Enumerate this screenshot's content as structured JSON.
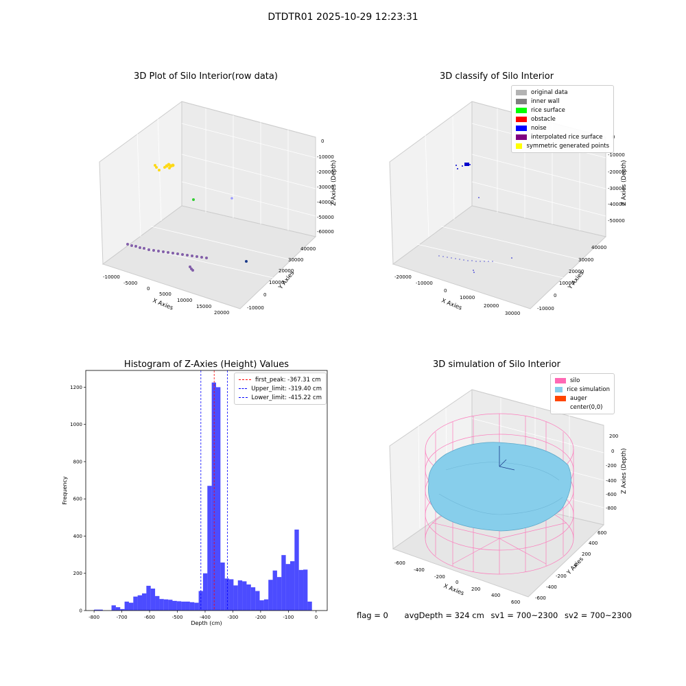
{
  "suptitle": "DTDTR01 2025-10-29 12:23:31",
  "panels": {
    "raw": {
      "title": "3D Plot of Silo Interior(row data)",
      "xlabel": "X Axies",
      "ylabel": "Y Axies",
      "zlabel": "Z Axies (Depth)",
      "xticks": [
        "-10000",
        "-5000",
        "0",
        "5000",
        "10000",
        "15000",
        "20000"
      ],
      "yticks": [
        "-10000",
        "0",
        "10000",
        "20000",
        "30000",
        "40000"
      ],
      "zticks": [
        "0",
        "-10000",
        "-20000",
        "-30000",
        "-40000",
        "-50000",
        "-60000"
      ]
    },
    "classify": {
      "title": "3D classify of Silo Interior",
      "xlabel": "X Axies",
      "ylabel": "Y Axies",
      "zlabel": "Z Axies (Depth)",
      "xticks": [
        "-20000",
        "-10000",
        "0",
        "10000",
        "20000",
        "30000"
      ],
      "yticks": [
        "-10000",
        "0",
        "10000",
        "20000",
        "30000",
        "40000"
      ],
      "zticks": [
        "0",
        "-10000",
        "-20000",
        "-30000",
        "-40000",
        "-50000"
      ],
      "legend": [
        {
          "label": "original data",
          "color": "#b3b3b3"
        },
        {
          "label": "inner wall",
          "color": "#808080"
        },
        {
          "label": "rice surface",
          "color": "#00ff00"
        },
        {
          "label": "obstacle",
          "color": "#ff0000"
        },
        {
          "label": "noise",
          "color": "#0000ff"
        },
        {
          "label": "interpolated rice surface",
          "color": "#800080"
        },
        {
          "label": "symmetric generated points",
          "color": "#ffff00"
        }
      ]
    },
    "simulation": {
      "title": "3D simulation of Silo Interior",
      "xlabel": "X Axies",
      "ylabel": "Y Axies",
      "zlabel": "Z Axies (Depth)",
      "xticks": [
        "-600",
        "-400",
        "-200",
        "0",
        "200",
        "400",
        "600"
      ],
      "yticks": [
        "-600",
        "-400",
        "-200",
        "0",
        "200",
        "400",
        "600"
      ],
      "zticks": [
        "200",
        "0",
        "-200",
        "-400",
        "-600",
        "-800"
      ],
      "legend": [
        {
          "label": "silo",
          "color": "#ff69b4"
        },
        {
          "label": "rice simulation",
          "color": "#87ceeb"
        },
        {
          "label": "auger",
          "color": "#ff4500"
        },
        {
          "label": "center(0,0)",
          "color": "#ffffff"
        }
      ]
    }
  },
  "chart_data": {
    "type": "bar",
    "title": "Histogram of Z-Axies (Height) Values",
    "xlabel": "Depth (cm)",
    "ylabel": "Frequency",
    "xlim": [
      -830,
      40
    ],
    "ylim": [
      0,
      1290
    ],
    "xticks": [
      -800,
      -700,
      -600,
      -500,
      -400,
      -300,
      -200,
      -100,
      0
    ],
    "yticks": [
      0,
      200,
      400,
      600,
      800,
      1000,
      1200
    ],
    "bar_color": "#0000ff",
    "bar_alpha": 0.7,
    "bin_width": 15.7,
    "bins_start": [
      -800,
      -784.3,
      -768.6,
      -752.9,
      -737.2,
      -721.5,
      -705.8,
      -690.1,
      -674.4,
      -658.7,
      -643,
      -627.3,
      -611.6,
      -595.9,
      -580.2,
      -564.5,
      -548.8,
      -533.1,
      -517.4,
      -501.7,
      -486,
      -470.3,
      -454.6,
      -438.9,
      -423.2,
      -407.5,
      -391.8,
      -376.1,
      -360.4,
      -344.7,
      -329,
      -313.3,
      -297.6,
      -281.9,
      -266.2,
      -250.5,
      -234.8,
      -219.1,
      -203.4,
      -187.7,
      -172,
      -156.3,
      -140.6,
      -124.9,
      -109.2,
      -93.5,
      -77.8,
      -62.1,
      -46.4,
      -30.7,
      -15
    ],
    "values": [
      5,
      5,
      0,
      0,
      28,
      18,
      8,
      48,
      42,
      75,
      82,
      92,
      133,
      118,
      78,
      62,
      60,
      58,
      52,
      50,
      48,
      48,
      45,
      42,
      105,
      200,
      670,
      1225,
      1200,
      258,
      172,
      168,
      135,
      162,
      157,
      140,
      125,
      105,
      55,
      60,
      165,
      215,
      180,
      298,
      250,
      265,
      435,
      218,
      220,
      48
    ],
    "annotations": [
      {
        "label": "first_peak: -367.31 cm",
        "x": -367.31,
        "color": "#ff0000"
      },
      {
        "label": "Upper_limit: -319.40 cm",
        "x": -319.4,
        "color": "#0000ff"
      },
      {
        "label": "Lower_limit: -415.22 cm",
        "x": -415.22,
        "color": "#0000ff"
      }
    ],
    "legend_position": "top-right"
  },
  "footer": {
    "flag": "flag = 0",
    "avg": "avgDepth = 324 cm",
    "sv1": "sv1 = 700~2300",
    "sv2": "sv2 = 700~2300"
  }
}
